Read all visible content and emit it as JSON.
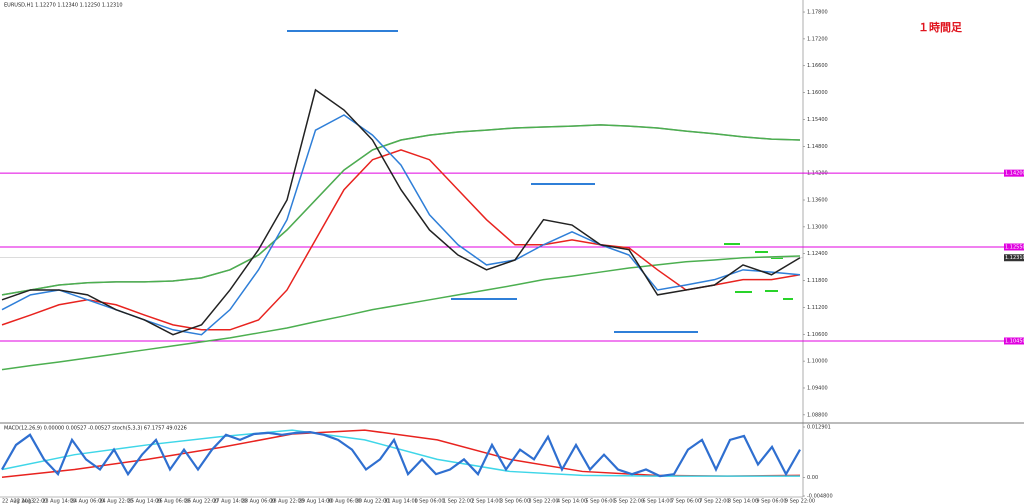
{
  "chart_data": [
    {
      "type": "line",
      "title": "EURUSD,H1  1.12270 1.12340 1.12250 1.12310",
      "annotation": "１時間足",
      "categories": [
        "22 Aug 2013",
        "22 Aug 22:00",
        "23 Aug 14:00",
        "24 Aug 06:00",
        "24 Aug 22:00",
        "25 Aug 14:00",
        "26 Aug 06:00",
        "26 Aug 22:00",
        "27 Aug 14:00",
        "28 Aug 06:00",
        "28 Aug 22:00",
        "29 Aug 14:00",
        "30 Aug 06:00",
        "30 Aug 22:00",
        "31 Aug 14:00",
        "1 Sep 06:00",
        "1 Sep 22:00",
        "2 Sep 14:00",
        "3 Sep 06:00",
        "3 Sep 22:00",
        "4 Sep 14:00",
        "5 Sep 06:00",
        "5 Sep 22:00",
        "6 Sep 14:00",
        "7 Sep 06:00",
        "7 Sep 22:00",
        "8 Sep 14:00",
        "9 Sep 06:00",
        "9 Sep 22:00"
      ],
      "series": [
        {
          "color": "#9a9a9a",
          "values": [
            1.1148,
            1.1159,
            1.117,
            1.1175,
            1.1177,
            1.1177,
            1.1179,
            1.1186,
            1.1204,
            1.1237,
            1.1293,
            1.136,
            1.1427,
            1.1472,
            1.1494,
            1.1505,
            1.1512,
            1.1516,
            1.1521,
            1.1523,
            1.1525,
            1.1528,
            1.1525,
            1.1521,
            1.1514,
            1.1508,
            1.1501,
            1.1496,
            1.1494
          ]
        },
        {
          "color": "#4caf50",
          "values": [
            1.1148,
            1.1159,
            1.117,
            1.1175,
            1.1177,
            1.1177,
            1.1179,
            1.1186,
            1.1204,
            1.1237,
            1.1293,
            1.136,
            1.1427,
            1.1472,
            1.1494,
            1.1505,
            1.1512,
            1.1516,
            1.1521,
            1.1523,
            1.1525,
            1.1528,
            1.1525,
            1.1521,
            1.1514,
            1.1508,
            1.1501,
            1.1496,
            1.1494
          ]
        },
        {
          "color": "#4caf50",
          "values": [
            1.0981,
            1.099,
            1.0998,
            1.1007,
            1.1016,
            1.1025,
            1.1034,
            1.1043,
            1.1052,
            1.1063,
            1.1074,
            1.1088,
            1.1101,
            1.1115,
            1.1126,
            1.1137,
            1.1148,
            1.1159,
            1.117,
            1.1182,
            1.119,
            1.1199,
            1.1208,
            1.1215,
            1.1222,
            1.1226,
            1.1231,
            1.1233,
            1.1235
          ]
        },
        {
          "color": "#e8231f",
          "values": [
            1.1081,
            1.1103,
            1.1126,
            1.1137,
            1.1126,
            1.1103,
            1.1081,
            1.107,
            1.107,
            1.1092,
            1.1159,
            1.1271,
            1.1383,
            1.145,
            1.1472,
            1.145,
            1.1383,
            1.1316,
            1.126,
            1.126,
            1.1271,
            1.126,
            1.1253,
            1.1204,
            1.1159,
            1.117,
            1.1182,
            1.1182,
            1.1193
          ]
        },
        {
          "color": "#2f7fd8",
          "values": [
            1.1115,
            1.1148,
            1.1159,
            1.1137,
            1.1115,
            1.1092,
            1.107,
            1.1059,
            1.1115,
            1.1204,
            1.1316,
            1.1516,
            1.155,
            1.1505,
            1.1438,
            1.1327,
            1.126,
            1.1215,
            1.1226,
            1.126,
            1.1289,
            1.126,
            1.1237,
            1.1159,
            1.117,
            1.1182,
            1.1204,
            1.1199,
            1.1193
          ]
        },
        {
          "color": "#222222",
          "values": [
            1.1137,
            1.1159,
            1.1159,
            1.1148,
            1.1115,
            1.1092,
            1.1059,
            1.1081,
            1.1159,
            1.1249,
            1.136,
            1.1606,
            1.1561,
            1.1494,
            1.1383,
            1.1293,
            1.1237,
            1.1204,
            1.1226,
            1.1316,
            1.1304,
            1.126,
            1.1249,
            1.1148,
            1.1159,
            1.117,
            1.1215,
            1.1193,
            1.1231
          ]
        }
      ],
      "ylim": [
        1.0864,
        1.1789
      ],
      "yticks": [
        {
          "value": 1.088,
          "label": "1.08800"
        },
        {
          "value": 1.094,
          "label": "1.09400"
        },
        {
          "value": 1.1,
          "label": "1.10000"
        },
        {
          "value": 1.106,
          "label": "1.10600"
        },
        {
          "value": 1.112,
          "label": "1.11200"
        },
        {
          "value": 1.118,
          "label": "1.11800"
        },
        {
          "value": 1.124,
          "label": "1.12400"
        },
        {
          "value": 1.13,
          "label": "1.13000"
        },
        {
          "value": 1.136,
          "label": "1.13600"
        },
        {
          "value": 1.142,
          "label": "1.14200"
        },
        {
          "value": 1.148,
          "label": "1.14800"
        },
        {
          "value": 1.154,
          "label": "1.15400"
        },
        {
          "value": 1.16,
          "label": "1.16000"
        },
        {
          "value": 1.166,
          "label": "1.16600"
        },
        {
          "value": 1.172,
          "label": "1.17200"
        },
        {
          "value": 1.178,
          "label": "1.17800"
        }
      ],
      "hlines": [
        {
          "value": 1.142,
          "label": "1.14200"
        },
        {
          "value": 1.1255,
          "label": "1.12550"
        },
        {
          "value": 1.1045,
          "label": "1.10450"
        }
      ],
      "hline_color": "#e000e0",
      "last_price": {
        "value": 1.1231,
        "label": "1.12310"
      }
    },
    {
      "type": "line",
      "title": "MACD(12,26,9) 0.00000 0.00527 -0.00527  stoch(5,3,3) 67.1757 49.0226",
      "series": [
        {
          "color": "#e8231f",
          "values": [
            0,
            0.002,
            0.0046,
            0.0076,
            0.0111,
            0.0121,
            0.0096,
            0.0046,
            0.0015,
            0.0005,
            0.0003,
            0.0005
          ]
        },
        {
          "color": "#3fd6e8",
          "values": [
            0.002,
            0.0058,
            0.0083,
            0.0104,
            0.0121,
            0.0096,
            0.0046,
            0.0015,
            0.0005,
            0.0003,
            0.0003,
            0.0003
          ]
        },
        {
          "color": "#2f6fd0",
          "values": [
            0.002,
            0.0083,
            0.0109,
            0.0046,
            0.0008,
            0.0096,
            0.0046,
            0.002,
            0.0071,
            0.0008,
            0.0058,
            0.0096,
            0.002,
            0.0071,
            0.002,
            0.0071,
            0.0109,
            0.0096,
            0.0111,
            0.0114,
            0.0109,
            0.0114,
            0.0116,
            0.0109,
            0.0096,
            0.0071,
            0.002,
            0.0046,
            0.0096,
            0.0008,
            0.0046,
            0.0008,
            0.002,
            0.0046,
            0.0008,
            0.0083,
            0.002,
            0.0071,
            0.0046,
            0.0104,
            0.002,
            0.0083,
            0.002,
            0.0058,
            0.002,
            0.0008,
            0.002,
            0.0003,
            0.0008,
            0.0071,
            0.0096,
            0.002,
            0.0096,
            0.0106,
            0.0033,
            0.0078,
            0.0008,
            0.0071
          ]
        }
      ],
      "ylim": [
        -0.0048,
        0.0129
      ],
      "yticks": [
        {
          "value": 0.0129,
          "label": "0.012901"
        },
        {
          "value": 0,
          "label": "0.00"
        },
        {
          "value": -0.0048,
          "label": "-0.004800"
        }
      ]
    }
  ]
}
